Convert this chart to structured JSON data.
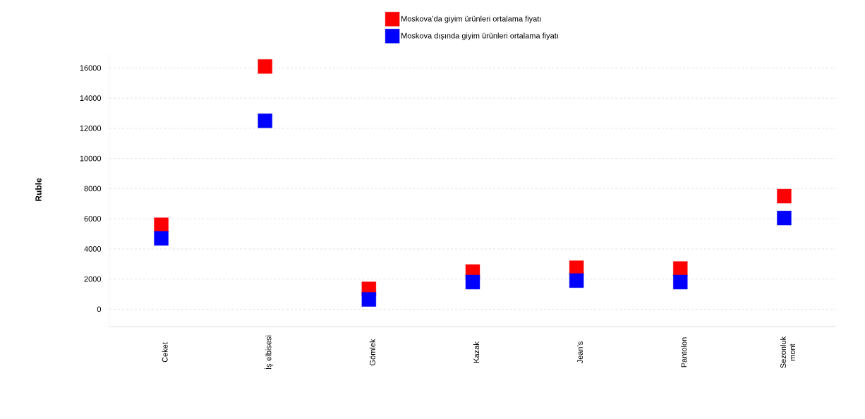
{
  "chart_data": {
    "type": "scatter",
    "ylabel": "Ruble",
    "categories": [
      "Ceket",
      "İş elbisesi",
      "Gömlek",
      "Kazak",
      "Jean’s",
      "Pantolon",
      "Sezonluk mont"
    ],
    "series": [
      {
        "name": "Moskova’da giyim ürünleri ortalama fiyatı",
        "color": "#ff0000",
        "values": [
          5600,
          16100,
          1350,
          2500,
          2750,
          2700,
          7500
        ]
      },
      {
        "name": "Moskova dışında giyim ürünleri ortalama fiyatı",
        "color": "#0000ff",
        "values": [
          4700,
          12500,
          650,
          1800,
          1900,
          1800,
          6050
        ]
      }
    ],
    "ylim": [
      -1150,
      17000
    ],
    "yticks": [
      0,
      2000,
      4000,
      6000,
      8000,
      10000,
      12000,
      14000,
      16000
    ],
    "grid": "y",
    "legend": "top",
    "marker": "square"
  }
}
